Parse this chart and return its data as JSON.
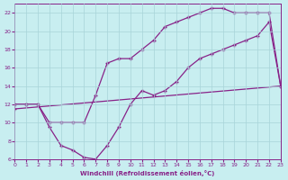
{
  "xlabel": "Windchill (Refroidissement éolien,°C)",
  "background_color": "#c8eef0",
  "grid_color": "#a8d4d8",
  "line_color": "#882288",
  "xlim": [
    0,
    23
  ],
  "ylim": [
    6,
    23
  ],
  "xticks": [
    0,
    1,
    2,
    3,
    4,
    5,
    6,
    7,
    8,
    9,
    10,
    11,
    12,
    13,
    14,
    15,
    16,
    17,
    18,
    19,
    20,
    21,
    22,
    23
  ],
  "yticks": [
    6,
    8,
    10,
    12,
    14,
    16,
    18,
    20,
    22
  ],
  "line1_x": [
    0,
    1,
    2,
    3,
    4,
    5,
    6,
    7,
    8,
    9,
    10,
    11,
    12,
    13,
    14,
    15,
    16,
    17,
    18,
    19,
    20,
    21,
    22,
    23
  ],
  "line1_y": [
    12,
    12,
    12,
    10,
    10,
    10,
    10,
    13,
    16.5,
    17,
    17,
    18,
    19,
    20.5,
    21,
    21.5,
    22,
    22.5,
    22.5,
    22,
    22,
    22,
    22,
    14
  ],
  "line2_x": [
    0,
    1,
    2,
    3,
    4,
    5,
    6,
    7,
    8,
    9,
    10,
    11,
    12,
    13,
    14,
    15,
    16,
    17,
    18,
    19,
    20,
    21,
    22,
    23
  ],
  "line2_y": [
    12,
    12,
    12,
    9.5,
    7.5,
    7.0,
    6.2,
    6.0,
    7.5,
    9.5,
    12,
    13.5,
    13,
    13.5,
    14.5,
    16,
    17,
    17.5,
    18,
    18.5,
    19,
    19.5,
    21,
    14
  ],
  "line3_x": [
    0,
    23
  ],
  "line3_y": [
    11.5,
    14
  ]
}
